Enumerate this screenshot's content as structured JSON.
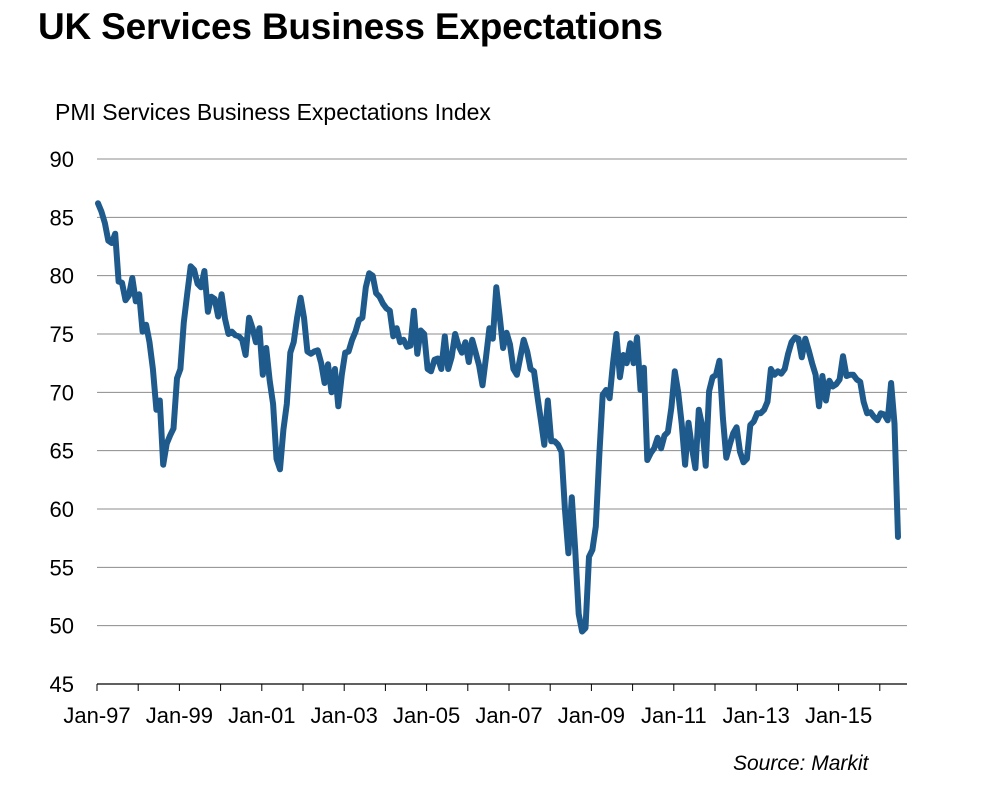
{
  "chart_data": {
    "type": "line",
    "title": "UK Services Business Expectations",
    "ylabel": "PMI Services Business Expectations Index",
    "xlabel": "",
    "source": "Source: Markit",
    "ylim": [
      45,
      90
    ],
    "yticks": [
      45,
      50,
      55,
      60,
      65,
      70,
      75,
      80,
      85,
      90
    ],
    "xticks": [
      "Jan-97",
      "Jan-99",
      "Jan-01",
      "Jan-03",
      "Jan-05",
      "Jan-07",
      "Jan-09",
      "Jan-11",
      "Jan-13",
      "Jan-15"
    ],
    "grid": true,
    "start": "Jan-97",
    "frequency": "monthly",
    "series": [
      {
        "name": "PMI Services Business Expectations Index",
        "color": "#1f5a8c",
        "values": [
          86.2,
          85.5,
          84.5,
          83.0,
          82.8,
          83.6,
          79.5,
          79.4,
          77.9,
          78.3,
          79.8,
          77.8,
          78.4,
          75.2,
          75.8,
          74.3,
          72.0,
          68.5,
          69.3,
          63.8,
          65.6,
          66.3,
          66.9,
          71.2,
          72.0,
          76.0,
          78.5,
          80.8,
          80.5,
          79.3,
          79.0,
          80.4,
          76.9,
          78.2,
          78.0,
          76.5,
          78.4,
          76.3,
          75.0,
          75.2,
          74.9,
          74.8,
          74.5,
          73.2,
          76.4,
          75.5,
          74.3,
          75.5,
          71.5,
          73.8,
          71.0,
          69.0,
          64.3,
          63.4,
          66.8,
          69.0,
          73.4,
          74.3,
          76.4,
          78.1,
          76.4,
          73.5,
          73.3,
          73.5,
          73.6,
          72.5,
          70.8,
          72.4,
          70.0,
          72.0,
          68.8,
          71.5,
          73.4,
          73.5,
          74.5,
          75.2,
          76.2,
          76.4,
          79.0,
          80.2,
          80.0,
          78.5,
          78.2,
          77.6,
          77.2,
          77.0,
          74.8,
          75.5,
          74.3,
          74.5,
          73.9,
          74.0,
          77.0,
          73.3,
          75.3,
          75.0,
          72.0,
          71.8,
          72.8,
          72.9,
          72.0,
          74.8,
          72.0,
          73.0,
          75.0,
          74.0,
          73.4,
          74.3,
          72.6,
          74.5,
          73.4,
          72.3,
          70.6,
          73.0,
          75.5,
          74.6,
          79.0,
          76.5,
          73.8,
          75.1,
          74.1,
          72.0,
          71.5,
          73.0,
          74.5,
          73.5,
          72.0,
          71.8,
          69.6,
          67.6,
          65.5,
          69.3,
          65.8,
          65.8,
          65.5,
          64.9,
          60.0,
          56.2,
          61.0,
          56.5,
          51.0,
          49.5,
          49.8,
          55.9,
          56.5,
          58.5,
          64.6,
          69.8,
          70.2,
          69.5,
          72.5,
          75.0,
          71.3,
          73.2,
          72.5,
          74.2,
          72.5,
          74.7,
          70.2,
          72.1,
          64.2,
          64.8,
          65.2,
          66.1,
          65.2,
          66.3,
          66.6,
          68.7,
          71.8,
          70.0,
          67.3,
          63.8,
          67.4,
          65.2,
          63.5,
          68.5,
          67.1,
          63.7,
          70.1,
          71.3,
          71.5,
          72.7,
          67.8,
          64.4,
          65.5,
          66.5,
          67.0,
          64.9,
          64.0,
          64.3,
          67.2,
          67.5,
          68.2,
          68.2,
          68.5,
          69.2,
          72.0,
          71.5,
          71.8,
          71.6,
          72.0,
          73.3,
          74.3,
          74.7,
          74.6,
          73.0,
          74.6,
          73.6,
          72.5,
          71.5,
          68.8,
          71.4,
          69.3,
          71.0,
          70.5,
          70.7,
          71.1,
          73.1,
          71.4,
          71.5,
          71.5,
          71.1,
          70.9,
          69.2,
          68.2,
          68.3,
          67.9,
          67.6,
          68.2,
          68.1,
          67.6,
          70.8,
          67.3,
          57.6
        ]
      }
    ]
  }
}
